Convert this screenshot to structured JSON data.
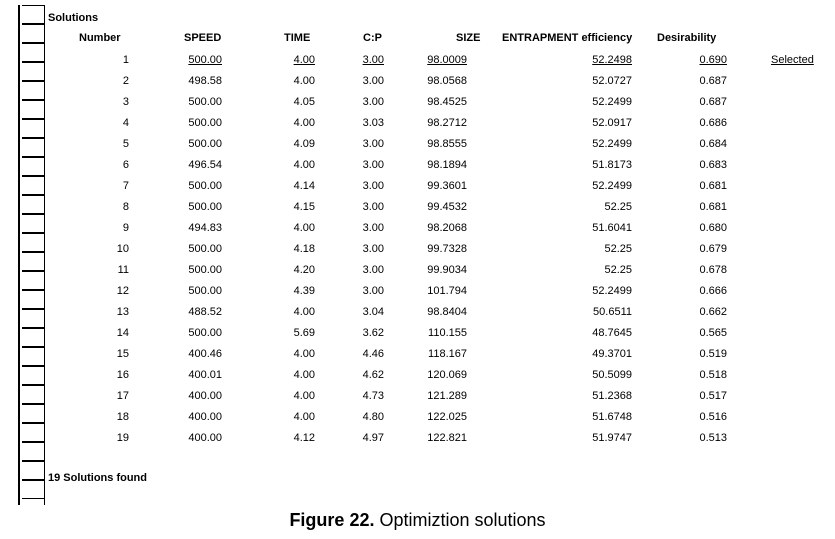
{
  "section_title": "Solutions",
  "footer": "19 Solutions found",
  "columns": [
    "Number",
    "SPEED",
    "TIME",
    "C:P",
    "SIZE",
    "ENTRAPMENT efficiency",
    "Desirability"
  ],
  "selected_label": "Selected",
  "rows": [
    [
      "1",
      "500.00",
      "4.00",
      "3.00",
      "98.0009",
      "52.2498",
      "0.690"
    ],
    [
      "2",
      "498.58",
      "4.00",
      "3.00",
      "98.0568",
      "52.0727",
      "0.687"
    ],
    [
      "3",
      "500.00",
      "4.05",
      "3.00",
      "98.4525",
      "52.2499",
      "0.687"
    ],
    [
      "4",
      "500.00",
      "4.00",
      "3.03",
      "98.2712",
      "52.0917",
      "0.686"
    ],
    [
      "5",
      "500.00",
      "4.09",
      "3.00",
      "98.8555",
      "52.2499",
      "0.684"
    ],
    [
      "6",
      "496.54",
      "4.00",
      "3.00",
      "98.1894",
      "51.8173",
      "0.683"
    ],
    [
      "7",
      "500.00",
      "4.14",
      "3.00",
      "99.3601",
      "52.2499",
      "0.681"
    ],
    [
      "8",
      "500.00",
      "4.15",
      "3.00",
      "99.4532",
      "52.25",
      "0.681"
    ],
    [
      "9",
      "494.83",
      "4.00",
      "3.00",
      "98.2068",
      "51.6041",
      "0.680"
    ],
    [
      "10",
      "500.00",
      "4.18",
      "3.00",
      "99.7328",
      "52.25",
      "0.679"
    ],
    [
      "11",
      "500.00",
      "4.20",
      "3.00",
      "99.9034",
      "52.25",
      "0.678"
    ],
    [
      "12",
      "500.00",
      "4.39",
      "3.00",
      "101.794",
      "52.2499",
      "0.666"
    ],
    [
      "13",
      "488.52",
      "4.00",
      "3.04",
      "98.8404",
      "50.6511",
      "0.662"
    ],
    [
      "14",
      "500.00",
      "5.69",
      "3.62",
      "110.155",
      "48.7645",
      "0.565"
    ],
    [
      "15",
      "400.46",
      "4.00",
      "4.46",
      "118.167",
      "49.3701",
      "0.519"
    ],
    [
      "16",
      "400.01",
      "4.00",
      "4.62",
      "120.069",
      "50.5099",
      "0.518"
    ],
    [
      "17",
      "400.00",
      "4.00",
      "4.73",
      "121.289",
      "51.2368",
      "0.517"
    ],
    [
      "18",
      "400.00",
      "4.00",
      "4.80",
      "122.025",
      "51.6748",
      "0.516"
    ],
    [
      "19",
      "400.00",
      "4.12",
      "4.97",
      "122.821",
      "51.9747",
      "0.513"
    ]
  ],
  "caption": {
    "label": "Figure 22.",
    "text": " Optimiztion solutions"
  }
}
